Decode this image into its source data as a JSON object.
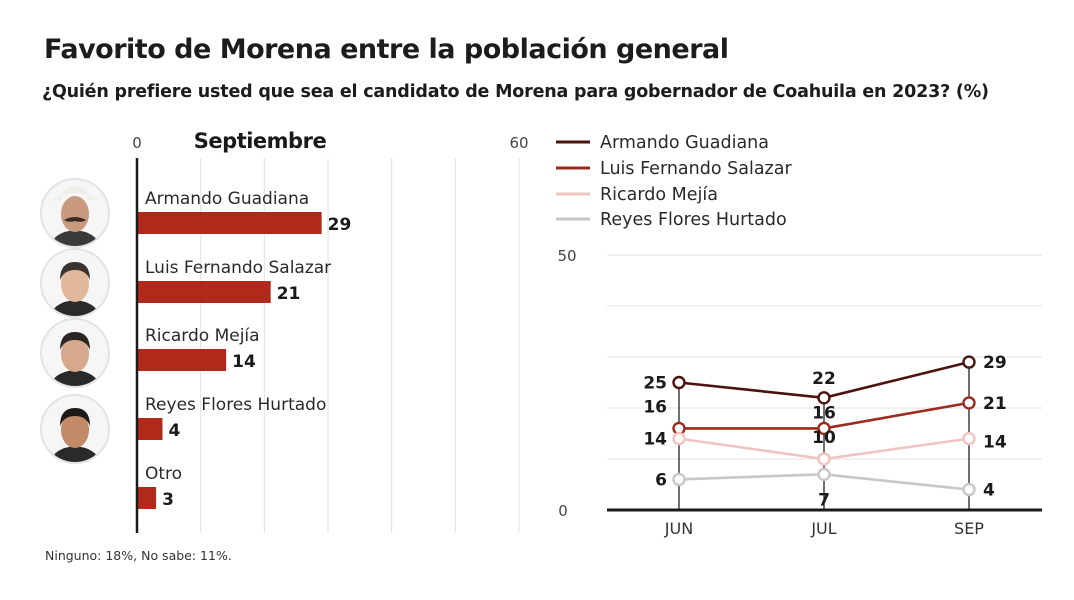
{
  "header": {
    "title": "Favorito de Morena entre la población general",
    "subtitle": "¿Quién prefiere usted que sea el candidato de Morena para gobernador de Coahuila en  2023? (%)"
  },
  "footnote": "Ninguno: 18%, No sabe: 11%.",
  "colors": {
    "bar": "#b02a1c",
    "axis": "#1a1a1a",
    "grid": "#e2e2e2",
    "series": [
      "#4a130d",
      "#9a2c1e",
      "#f0c4c0",
      "#c8c8c8"
    ]
  },
  "avatars": [
    {
      "name": "Armando Guadiana",
      "icon": "portrait-icon"
    },
    {
      "name": "Luis Fernando Salazar",
      "icon": "portrait-icon"
    },
    {
      "name": "Ricardo Mejía",
      "icon": "portrait-icon"
    },
    {
      "name": "Reyes Flores Hurtado",
      "icon": "portrait-icon"
    }
  ],
  "chart_data": [
    {
      "type": "bar",
      "orientation": "horizontal",
      "title": "Septiembre",
      "xlim": [
        0,
        60
      ],
      "x_tick_labels": [
        "0",
        "60"
      ],
      "grid_step": 10,
      "grid": true,
      "categories": [
        "Armando Guadiana",
        "Luis Fernando Salazar",
        "Ricardo Mejía",
        "Reyes Flores Hurtado",
        "Otro"
      ],
      "values": [
        29,
        21,
        14,
        4,
        3
      ],
      "unit": "%"
    },
    {
      "type": "line",
      "title": "",
      "x": [
        "JUN",
        "JUL",
        "SEP"
      ],
      "ylim": [
        0,
        50
      ],
      "y_tick_labels": [
        "0",
        "50"
      ],
      "grid_step": 10,
      "grid": true,
      "legend_position": "top-left",
      "series": [
        {
          "name": "Armando Guadiana",
          "values": [
            25,
            22,
            29
          ]
        },
        {
          "name": "Luis Fernando Salazar",
          "values": [
            16,
            16,
            21
          ]
        },
        {
          "name": "Ricardo Mejía",
          "values": [
            14,
            10,
            14
          ]
        },
        {
          "name": "Reyes Flores Hurtado",
          "values": [
            6,
            7,
            4
          ]
        }
      ],
      "unit": "%"
    }
  ]
}
